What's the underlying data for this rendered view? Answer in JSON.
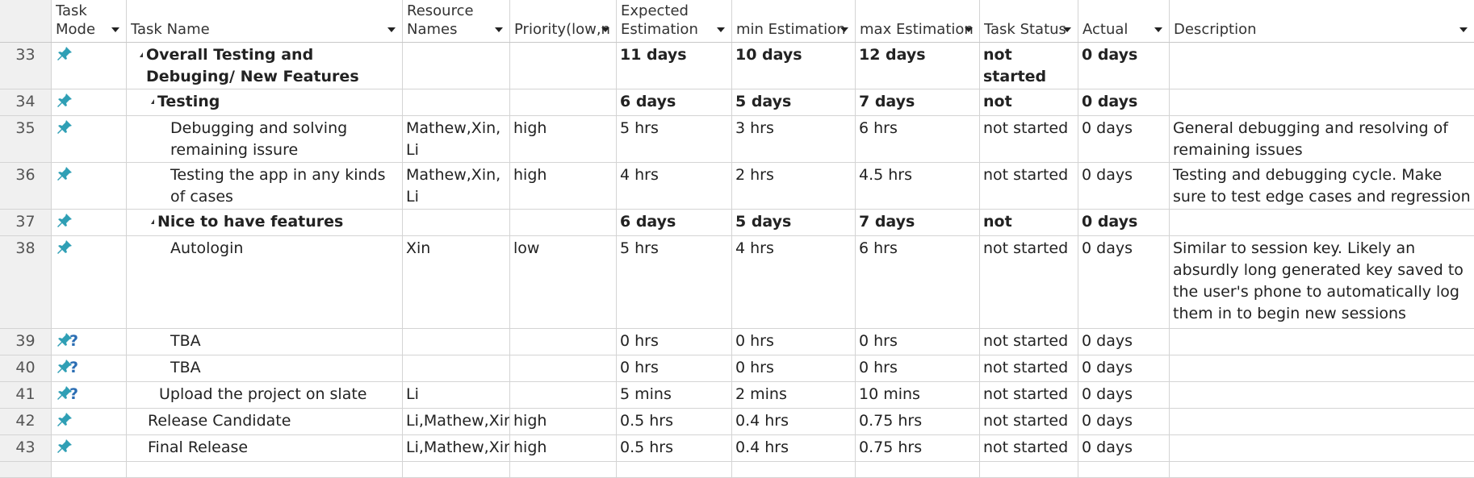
{
  "columns": [
    {
      "id": "id",
      "label": ""
    },
    {
      "id": "mode",
      "label": "Task\nMode"
    },
    {
      "id": "name",
      "label": "Task Name"
    },
    {
      "id": "resources",
      "label": "Resource\nNames"
    },
    {
      "id": "priority",
      "label": "Priority(low,n"
    },
    {
      "id": "expected",
      "label": "Expected\nEstimation"
    },
    {
      "id": "min",
      "label": "min Estimation"
    },
    {
      "id": "max",
      "label": "max Estimation"
    },
    {
      "id": "status",
      "label": "Task Status"
    },
    {
      "id": "actual",
      "label": "Actual"
    },
    {
      "id": "desc",
      "label": "Description"
    }
  ],
  "icons": {
    "pin": "pushpin-icon",
    "manual": "manual-schedule-question-icon"
  },
  "colors": {
    "pin": "#2f9fb5",
    "question": "#2a6db3",
    "grid": "#d4d4d4",
    "id_bg": "#f0f0f0"
  },
  "rows": [
    {
      "id": "33",
      "mode": "pin",
      "indent": 1,
      "summary": true,
      "name": "Overall Testing and Debuging/ New Features",
      "resources": "",
      "priority": "",
      "expected": "11 days",
      "min": "10 days",
      "max": "12 days",
      "status": "not started",
      "actual": "0 days",
      "desc": ""
    },
    {
      "id": "34",
      "mode": "pin",
      "indent": 2,
      "summary": true,
      "name": "Testing",
      "resources": "",
      "priority": "",
      "expected": "6 days",
      "min": "5 days",
      "max": "7 days",
      "status": "not started",
      "actual": "0 days",
      "desc": ""
    },
    {
      "id": "35",
      "mode": "pin",
      "indent": 3,
      "summary": false,
      "name": "Debugging and solving remaining issure",
      "resources": "Mathew,Xin, Li",
      "priority": "high",
      "expected": "5 hrs",
      "min": "3 hrs",
      "max": "6 hrs",
      "status": "not started",
      "actual": "0 days",
      "desc": "General debugging and resolving of remaining issues"
    },
    {
      "id": "36",
      "mode": "pin",
      "indent": 3,
      "summary": false,
      "name": "Testing the app in any kinds of cases",
      "resources": "Mathew,Xin, Li",
      "priority": "high",
      "expected": "4 hrs",
      "min": "2 hrs",
      "max": "4.5 hrs",
      "status": "not started",
      "actual": "0 days",
      "desc": "Testing and debugging cycle. Make sure to test edge cases and regression"
    },
    {
      "id": "37",
      "mode": "pin",
      "indent": 2,
      "summary": true,
      "name": "Nice to have features",
      "resources": "",
      "priority": "",
      "expected": "6 days",
      "min": "5 days",
      "max": "7 days",
      "status": "not started",
      "actual": "0 days",
      "desc": ""
    },
    {
      "id": "38",
      "mode": "pin",
      "indent": 3,
      "summary": false,
      "name": "Autologin",
      "resources": "Xin",
      "priority": "low",
      "expected": "5 hrs",
      "min": "4 hrs",
      "max": "6 hrs",
      "status": "not started",
      "actual": "0 days",
      "desc": "Similar to session key. Likely an absurdly long generated key saved to the user's phone to automatically log them in to begin new sessions"
    },
    {
      "id": "39",
      "mode": "manual",
      "indent": 3,
      "summary": false,
      "name": "TBA",
      "resources": "",
      "priority": "",
      "expected": "0 hrs",
      "min": "0 hrs",
      "max": "0 hrs",
      "status": "not started",
      "actual": "0 days",
      "desc": ""
    },
    {
      "id": "40",
      "mode": "manual",
      "indent": 3,
      "summary": false,
      "name": "TBA",
      "resources": "",
      "priority": "",
      "expected": "0 hrs",
      "min": "0 hrs",
      "max": "0 hrs",
      "status": "not started",
      "actual": "0 days",
      "desc": ""
    },
    {
      "id": "41",
      "mode": "manual",
      "indent": 2,
      "summary": false,
      "name": "Upload the project on slate",
      "resources": "Li",
      "priority": "",
      "expected": "5 mins",
      "min": "2 mins",
      "max": "10 mins",
      "status": "not started",
      "actual": "0 days",
      "desc": ""
    },
    {
      "id": "42",
      "mode": "pin",
      "indent": 1,
      "summary": false,
      "name": "Release Candidate",
      "resources": "Li,Mathew,Xin",
      "priority": "high",
      "expected": "0.5 hrs",
      "min": "0.4 hrs",
      "max": "0.75 hrs",
      "status": "not started",
      "actual": "0 days",
      "desc": ""
    },
    {
      "id": "43",
      "mode": "pin",
      "indent": 1,
      "summary": false,
      "name": "Final Release",
      "resources": "Li,Mathew,Xin",
      "priority": "high",
      "expected": "0.5 hrs",
      "min": "0.4 hrs",
      "max": "0.75 hrs",
      "status": "not started",
      "actual": "0 days",
      "desc": ""
    }
  ]
}
